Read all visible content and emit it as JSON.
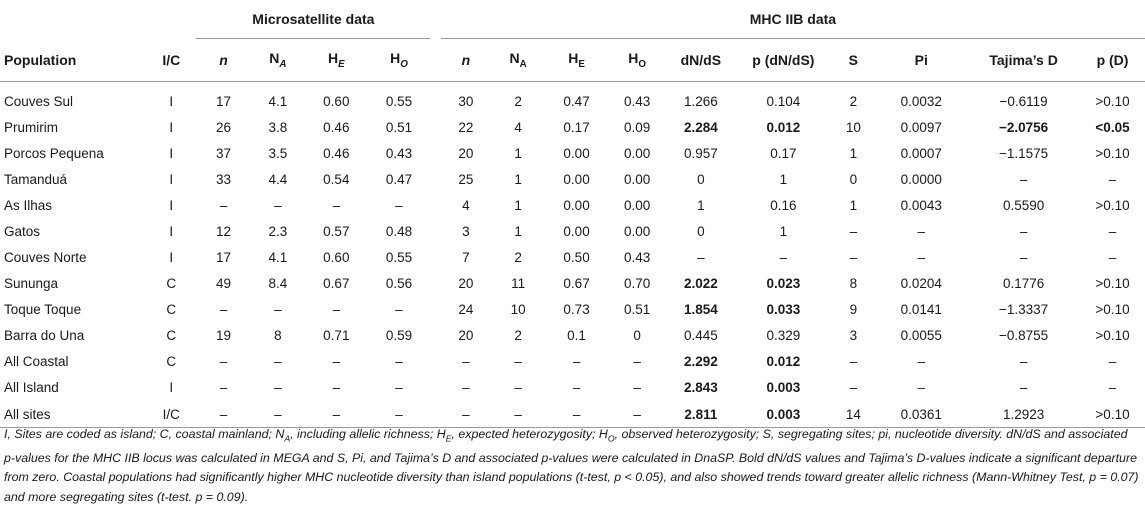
{
  "group_headers": {
    "micro": "Microsatellite data",
    "mhc": "MHC IIB data"
  },
  "columns": {
    "population": "Population",
    "ic": "I/C",
    "n": "n",
    "na": "N",
    "na_sub": "A",
    "he": "H",
    "he_sub": "E",
    "ho": "H",
    "ho_sub": "O",
    "dnds": "dN/dS",
    "p_dnds": "p (dN/dS)",
    "s": "S",
    "pi": "Pi",
    "tajima": "Tajima’s D",
    "p_d": "p (D)"
  },
  "rows": [
    {
      "pop": "Couves Sul",
      "ic": "I",
      "n1": "17",
      "na1": "4.1",
      "he1": "0.60",
      "ho1": "0.55",
      "n2": "30",
      "na2": "2",
      "he2": "0.47",
      "ho2": "0.43",
      "dnds": "1.266",
      "p_dnds": "0.104",
      "s": "2",
      "pi": "0.0032",
      "tajima": "−0.6119",
      "p_d": ">0.10"
    },
    {
      "pop": "Prumirim",
      "ic": "I",
      "n1": "26",
      "na1": "3.8",
      "he1": "0.46",
      "ho1": "0.51",
      "n2": "22",
      "na2": "4",
      "he2": "0.17",
      "ho2": "0.09",
      "dnds": "2.284",
      "p_dnds": "0.012",
      "s": "10",
      "pi": "0.0097",
      "tajima": "−2.0756",
      "p_d": "<0.05"
    },
    {
      "pop": "Porcos Pequena",
      "ic": "I",
      "n1": "37",
      "na1": "3.5",
      "he1": "0.46",
      "ho1": "0.43",
      "n2": "20",
      "na2": "1",
      "he2": "0.00",
      "ho2": "0.00",
      "dnds": "0.957",
      "p_dnds": "0.17",
      "s": "1",
      "pi": "0.0007",
      "tajima": "−1.1575",
      "p_d": ">0.10"
    },
    {
      "pop": "Tamanduá",
      "ic": "I",
      "n1": "33",
      "na1": "4.4",
      "he1": "0.54",
      "ho1": "0.47",
      "n2": "25",
      "na2": "1",
      "he2": "0.00",
      "ho2": "0.00",
      "dnds": "0",
      "p_dnds": "1",
      "s": "0",
      "pi": "0.0000",
      "tajima": "–",
      "p_d": "–"
    },
    {
      "pop": "As Ilhas",
      "ic": "I",
      "n1": "–",
      "na1": "–",
      "he1": "–",
      "ho1": "–",
      "n2": "4",
      "na2": "1",
      "he2": "0.00",
      "ho2": "0.00",
      "dnds": "1",
      "p_dnds": "0.16",
      "s": "1",
      "pi": "0.0043",
      "tajima": "0.5590",
      "p_d": ">0.10"
    },
    {
      "pop": "Gatos",
      "ic": "I",
      "n1": "12",
      "na1": "2.3",
      "he1": "0.57",
      "ho1": "0.48",
      "n2": "3",
      "na2": "1",
      "he2": "0.00",
      "ho2": "0.00",
      "dnds": "0",
      "p_dnds": "1",
      "s": "–",
      "pi": "–",
      "tajima": "–",
      "p_d": "–"
    },
    {
      "pop": "Couves Norte",
      "ic": "I",
      "n1": "17",
      "na1": "4.1",
      "he1": "0.60",
      "ho1": "0.55",
      "n2": "7",
      "na2": "2",
      "he2": "0.50",
      "ho2": "0.43",
      "dnds": "–",
      "p_dnds": "–",
      "s": "–",
      "pi": "–",
      "tajima": "–",
      "p_d": "–"
    },
    {
      "pop": "Sununga",
      "ic": "C",
      "n1": "49",
      "na1": "8.4",
      "he1": "0.67",
      "ho1": "0.56",
      "n2": "20",
      "na2": "11",
      "he2": "0.67",
      "ho2": "0.70",
      "dnds": "2.022",
      "p_dnds": "0.023",
      "s": "8",
      "pi": "0.0204",
      "tajima": "0.1776",
      "p_d": ">0.10"
    },
    {
      "pop": "Toque Toque",
      "ic": "C",
      "n1": "–",
      "na1": "–",
      "he1": "–",
      "ho1": "–",
      "n2": "24",
      "na2": "10",
      "he2": "0.73",
      "ho2": "0.51",
      "dnds": "1.854",
      "p_dnds": "0.033",
      "s": "9",
      "pi": "0.0141",
      "tajima": "−1.3337",
      "p_d": ">0.10"
    },
    {
      "pop": "Barra do Una",
      "ic": "C",
      "n1": "19",
      "na1": "8",
      "he1": "0.71",
      "ho1": "0.59",
      "n2": "20",
      "na2": "2",
      "he2": "0.1",
      "ho2": "0",
      "dnds": "0.445",
      "p_dnds": "0.329",
      "s": "3",
      "pi": "0.0055",
      "tajima": "−0.8755",
      "p_d": ">0.10"
    },
    {
      "pop": "All Coastal",
      "ic": "C",
      "n1": "–",
      "na1": "–",
      "he1": "–",
      "ho1": "–",
      "n2": "–",
      "na2": "–",
      "he2": "–",
      "ho2": "–",
      "dnds": "2.292",
      "p_dnds": "0.012",
      "s": "–",
      "pi": "–",
      "tajima": "–",
      "p_d": "–"
    },
    {
      "pop": "All Island",
      "ic": "I",
      "n1": "–",
      "na1": "–",
      "he1": "–",
      "ho1": "–",
      "n2": "–",
      "na2": "–",
      "he2": "–",
      "ho2": "–",
      "dnds": "2.843",
      "p_dnds": "0.003",
      "s": "–",
      "pi": "–",
      "tajima": "–",
      "p_d": "–"
    },
    {
      "pop": "All sites",
      "ic": "I/C",
      "n1": "–",
      "na1": "–",
      "he1": "–",
      "ho1": "–",
      "n2": "–",
      "na2": "–",
      "he2": "–",
      "ho2": "–",
      "dnds": "2.811",
      "p_dnds": "0.003",
      "s": "14",
      "pi": "0.0361",
      "tajima": "1.2923",
      "p_d": ">0.10"
    }
  ],
  "footnote": {
    "p1_a": "I, Sites are coded as island; C, coastal mainland; N",
    "p1_a_sub": "A",
    "p1_b": ", including allelic richness; H",
    "p1_b_sub": "E",
    "p1_c": ", expected heterozygosity; H",
    "p1_c_sub": "O",
    "p1_d": ", observed heterozygosity; S, segregating sites; pi, nucleotide diversity. dN/dS and associated p-values for the MHC IIB locus was calculated in MEGA and S, Pi, and Tajima’s D and associated p-values were calculated in DnaSP. Bold dN/dS values and Tajima’s D-values indicate a significant departure from zero. Coastal populations had significantly higher MHC nucleotide diversity than island populations (t-test, p < 0.05), and also showed trends toward greater allelic richness (Mann-Whitney Test, p = 0.07) and more segregating sites (t-test. p = 0.09)."
  }
}
